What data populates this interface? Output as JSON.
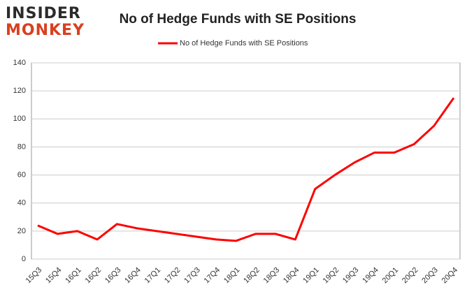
{
  "logo": {
    "line1": "INSIDER",
    "line2": "MONKEY"
  },
  "chart_data": {
    "type": "line",
    "title": "No of Hedge Funds with SE Positions",
    "categories": [
      "15Q3",
      "15Q4",
      "16Q1",
      "16Q2",
      "16Q3",
      "16Q4",
      "17Q1",
      "17Q2",
      "17Q3",
      "17Q4",
      "18Q1",
      "18Q2",
      "18Q3",
      "18Q4",
      "19Q1",
      "19Q2",
      "19Q3",
      "19Q4",
      "20Q1",
      "20Q2",
      "20Q3",
      "20Q4"
    ],
    "series": [
      {
        "name": "No of Hedge Funds with SE Positions",
        "color": "#ff0000",
        "values": [
          24,
          18,
          20,
          14,
          25,
          22,
          20,
          18,
          16,
          14,
          13,
          18,
          18,
          14,
          50,
          60,
          69,
          76,
          76,
          82,
          95,
          115
        ]
      }
    ],
    "ylim": [
      0,
      140
    ],
    "yticks": [
      0,
      20,
      40,
      60,
      80,
      100,
      120,
      140
    ],
    "grid": true,
    "legend": "top"
  }
}
